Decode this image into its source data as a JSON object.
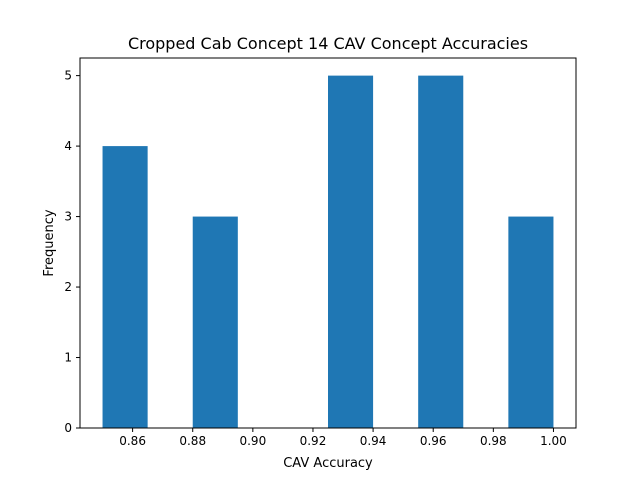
{
  "chart_data": {
    "type": "bar",
    "title": "Cropped Cab Concept 14 CAV Concept Accuracies",
    "xlabel": "CAV Accuracy",
    "ylabel": "Frequency",
    "bins": [
      {
        "start": 0.85,
        "end": 0.865,
        "count": 4
      },
      {
        "start": 0.865,
        "end": 0.88,
        "count": 0
      },
      {
        "start": 0.88,
        "end": 0.895,
        "count": 3
      },
      {
        "start": 0.895,
        "end": 0.91,
        "count": 0
      },
      {
        "start": 0.91,
        "end": 0.925,
        "count": 0
      },
      {
        "start": 0.925,
        "end": 0.94,
        "count": 5
      },
      {
        "start": 0.94,
        "end": 0.955,
        "count": 0
      },
      {
        "start": 0.955,
        "end": 0.97,
        "count": 5
      },
      {
        "start": 0.97,
        "end": 0.985,
        "count": 0
      },
      {
        "start": 0.985,
        "end": 1.0,
        "count": 3
      }
    ],
    "xlim": [
      0.8425,
      1.0075
    ],
    "ylim": [
      0,
      5.25
    ],
    "xticks": [
      "0.86",
      "0.88",
      "0.90",
      "0.92",
      "0.94",
      "0.96",
      "0.98",
      "1.00"
    ],
    "yticks": [
      "0",
      "1",
      "2",
      "3",
      "4",
      "5"
    ],
    "bar_color": "#1f77b4",
    "grid": false,
    "legend": "none"
  }
}
